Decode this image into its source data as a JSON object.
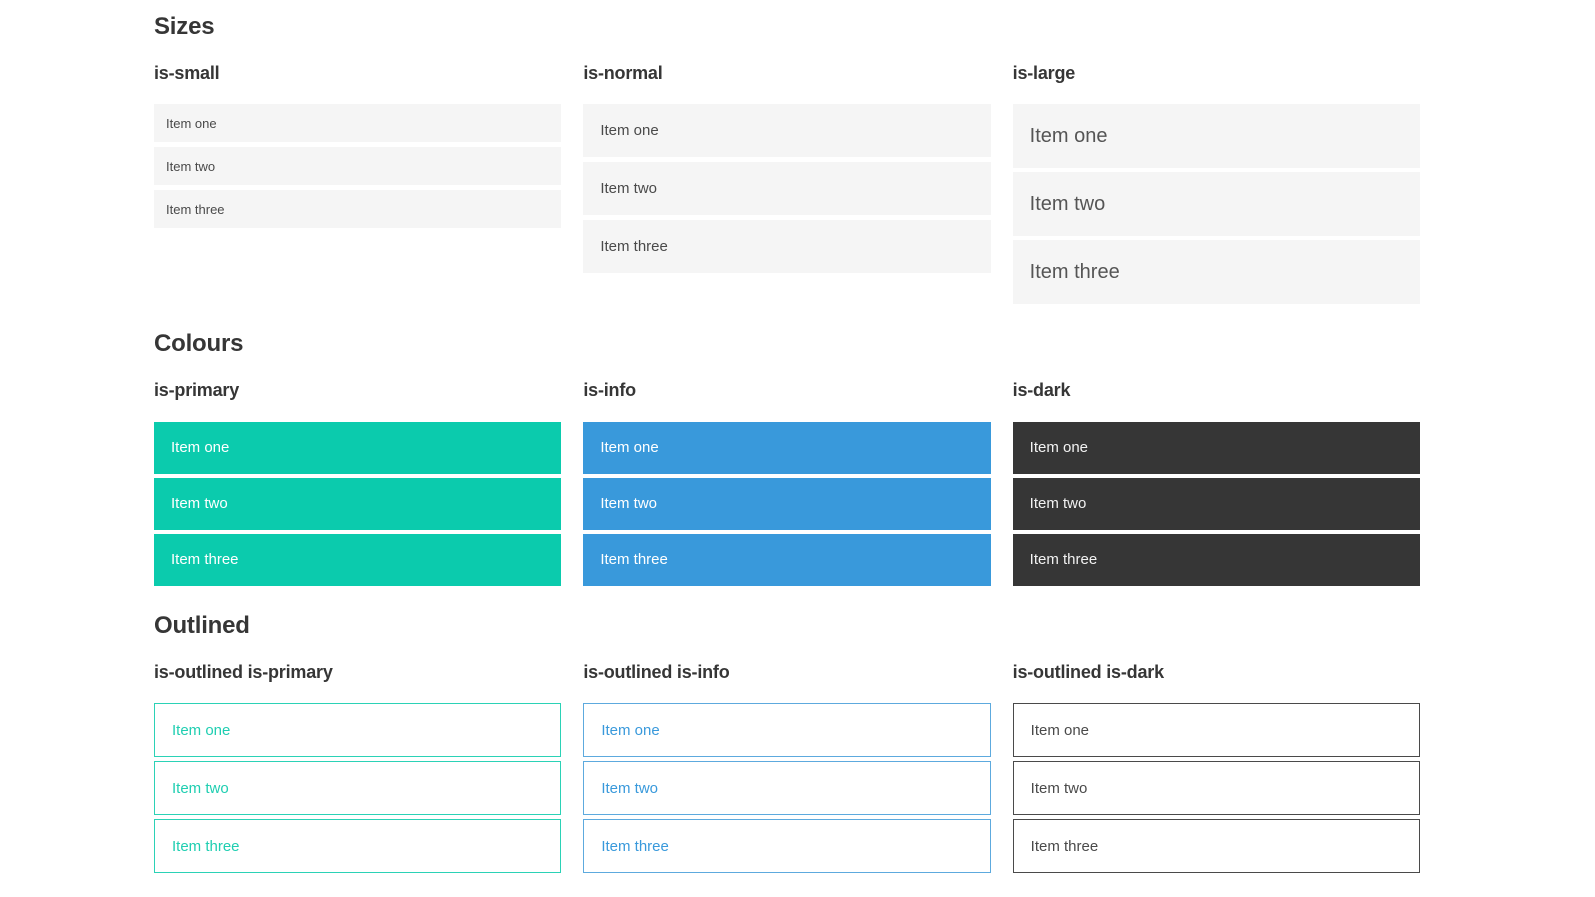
{
  "page": {
    "sections": [
      {
        "title": "Sizes",
        "groups": [
          {
            "label": "is-small",
            "variant": "small",
            "items": [
              "Item one",
              "Item two",
              "Item three"
            ]
          },
          {
            "label": "is-normal",
            "variant": "normal",
            "items": [
              "Item one",
              "Item two",
              "Item three"
            ]
          },
          {
            "label": "is-large",
            "variant": "large",
            "items": [
              "Item one",
              "Item two",
              "Item three"
            ]
          }
        ]
      },
      {
        "title": "Colours",
        "groups": [
          {
            "label": "is-primary",
            "variant": "primary",
            "items": [
              "Item one",
              "Item two",
              "Item three"
            ]
          },
          {
            "label": "is-info",
            "variant": "info",
            "items": [
              "Item one",
              "Item two",
              "Item three"
            ]
          },
          {
            "label": "is-dark",
            "variant": "dark",
            "items": [
              "Item one",
              "Item two",
              "Item three"
            ]
          }
        ]
      },
      {
        "title": "Outlined",
        "groups": [
          {
            "label": "is-outlined is-primary",
            "variant": "outlined-primary",
            "items": [
              "Item one",
              "Item two",
              "Item three"
            ]
          },
          {
            "label": "is-outlined is-info",
            "variant": "outlined-info",
            "items": [
              "Item one",
              "Item two",
              "Item three"
            ]
          },
          {
            "label": "is-outlined is-dark",
            "variant": "outlined-dark",
            "items": [
              "Item one",
              "Item two",
              "Item three"
            ]
          }
        ]
      }
    ]
  },
  "colors": {
    "primary": "#0bcbad",
    "info": "#3999db",
    "dark": "#363636",
    "light_item_background": "#f5f5f5",
    "item_text": "#4a4a4a",
    "heading_text": "#363636",
    "inverted_text": "#ffffff"
  }
}
